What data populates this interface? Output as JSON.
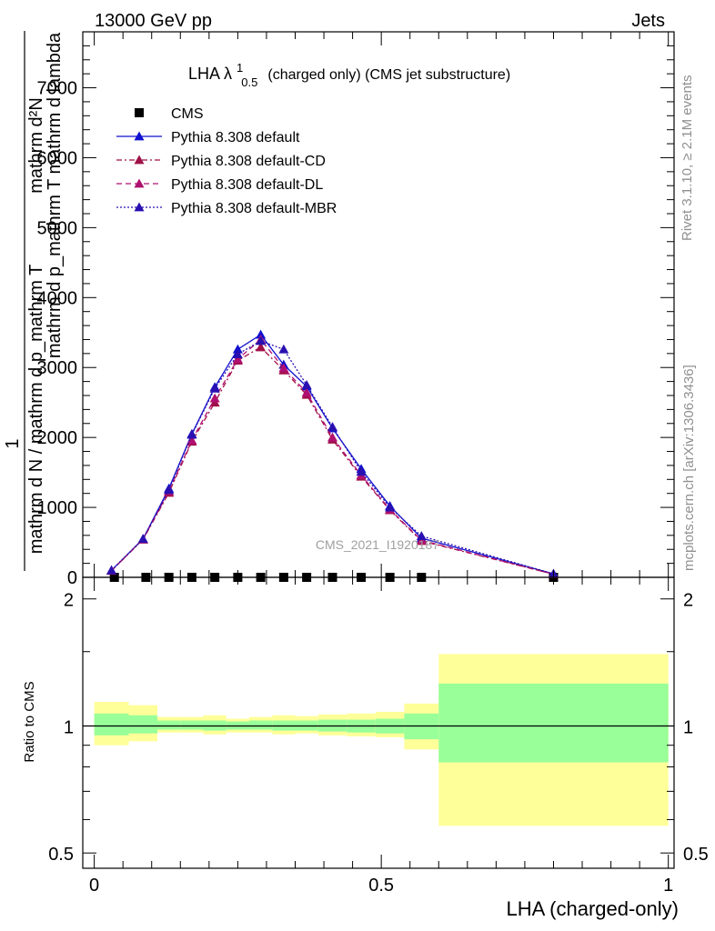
{
  "header": {
    "left": "13000 GeV pp",
    "right": "Jets"
  },
  "side_labels": {
    "rivet": "Rivet 3.1.10, ≥ 2.1M events",
    "mcplots": "mcplots.cern.ch [arXiv:1306.3436]"
  },
  "watermark": "CMS_2021_I1920187",
  "chart_data": [
    {
      "type": "line",
      "title_main": "LHA λ",
      "title_sup": "1",
      "title_sub": "0.5",
      "title_rest": "(charged only) (CMS jet substructure)",
      "ylabel_lines": [
        "mathrm d²N",
        "mathrm d p_mathrm T mathrm d lambda",
        "1",
        "mathrm d N / mathrm d p_mathrm T"
      ],
      "xlim": [
        -0.02,
        1.01
      ],
      "ylim": [
        0,
        7800
      ],
      "yticks": [
        0,
        1000,
        2000,
        3000,
        4000,
        5000,
        6000,
        7000
      ],
      "ytick_labels": [
        "0",
        "1000",
        "2000",
        "3000",
        "4000",
        "5000",
        "6000",
        "7000"
      ],
      "legend_position": "top-left",
      "series": [
        {
          "name": "CMS",
          "color": "#000000",
          "marker": "square",
          "x": [
            0.035,
            0.09,
            0.13,
            0.17,
            0.21,
            0.25,
            0.29,
            0.33,
            0.37,
            0.415,
            0.465,
            0.515,
            0.57,
            0.8
          ],
          "y": [
            0,
            0,
            0,
            0,
            0,
            0,
            0,
            0,
            0,
            0,
            0,
            0,
            0,
            0
          ]
        },
        {
          "name": "Pythia 8.308 default",
          "color": "#1010d0",
          "marker": "triangle",
          "dash": "solid",
          "x": [
            0.03,
            0.085,
            0.13,
            0.17,
            0.21,
            0.25,
            0.29,
            0.33,
            0.37,
            0.415,
            0.465,
            0.515,
            0.57,
            0.8
          ],
          "y": [
            100,
            550,
            1270,
            2050,
            2720,
            3260,
            3470,
            3040,
            2730,
            2130,
            1550,
            1020,
            560,
            50
          ]
        },
        {
          "name": "Pythia 8.308 default-CD",
          "color": "#a01048",
          "marker": "triangle",
          "dash": "dashdot",
          "x": [
            0.03,
            0.085,
            0.13,
            0.17,
            0.21,
            0.25,
            0.29,
            0.33,
            0.37,
            0.415,
            0.465,
            0.515,
            0.57,
            0.8
          ],
          "y": [
            95,
            540,
            1210,
            1940,
            2500,
            3100,
            3290,
            2960,
            2610,
            1970,
            1440,
            960,
            520,
            45
          ]
        },
        {
          "name": "Pythia 8.308 default-DL",
          "color": "#b01070",
          "marker": "triangle",
          "dash": "dashed",
          "x": [
            0.03,
            0.085,
            0.13,
            0.17,
            0.21,
            0.25,
            0.29,
            0.33,
            0.37,
            0.415,
            0.465,
            0.515,
            0.57,
            0.8
          ],
          "y": [
            95,
            545,
            1230,
            1960,
            2560,
            3120,
            3400,
            2990,
            2640,
            2000,
            1460,
            970,
            530,
            45
          ]
        },
        {
          "name": "Pythia 8.308 default-MBR",
          "color": "#2a10b0",
          "marker": "triangle",
          "dash": "dotted",
          "x": [
            0.03,
            0.085,
            0.13,
            0.17,
            0.21,
            0.25,
            0.29,
            0.33,
            0.37,
            0.415,
            0.465,
            0.515,
            0.57,
            0.8
          ],
          "y": [
            100,
            550,
            1250,
            2040,
            2700,
            3190,
            3380,
            3260,
            2750,
            2150,
            1510,
            1000,
            590,
            50
          ]
        }
      ]
    },
    {
      "type": "area",
      "ylabel": "Ratio to CMS",
      "xlabel": "LHA (charged-only)",
      "log_y": true,
      "xlim": [
        -0.02,
        1.01
      ],
      "ylim": [
        0.46,
        2.25
      ],
      "yticks": [
        0.5,
        1,
        2
      ],
      "ytick_labels": [
        "0.5",
        "1",
        "2"
      ],
      "xticks": [
        0,
        0.5,
        1
      ],
      "xtick_labels": [
        "0",
        "0.5",
        "1"
      ],
      "reference_line": 1,
      "bands": {
        "inner_color": "#99ff99",
        "outer_color": "#ffff99",
        "bins": [
          {
            "x0": 0.0,
            "x1": 0.06,
            "inner": [
              0.95,
              1.07
            ],
            "outer": [
              0.9,
              1.14
            ]
          },
          {
            "x0": 0.06,
            "x1": 0.11,
            "inner": [
              0.96,
              1.06
            ],
            "outer": [
              0.92,
              1.12
            ]
          },
          {
            "x0": 0.11,
            "x1": 0.15,
            "inner": [
              0.98,
              1.03
            ],
            "outer": [
              0.965,
              1.05
            ]
          },
          {
            "x0": 0.15,
            "x1": 0.19,
            "inner": [
              0.98,
              1.03
            ],
            "outer": [
              0.965,
              1.05
            ]
          },
          {
            "x0": 0.19,
            "x1": 0.23,
            "inner": [
              0.975,
              1.03
            ],
            "outer": [
              0.955,
              1.06
            ]
          },
          {
            "x0": 0.23,
            "x1": 0.27,
            "inner": [
              0.98,
              1.025
            ],
            "outer": [
              0.965,
              1.04
            ]
          },
          {
            "x0": 0.27,
            "x1": 0.31,
            "inner": [
              0.98,
              1.03
            ],
            "outer": [
              0.965,
              1.05
            ]
          },
          {
            "x0": 0.31,
            "x1": 0.35,
            "inner": [
              0.975,
              1.03
            ],
            "outer": [
              0.955,
              1.06
            ]
          },
          {
            "x0": 0.35,
            "x1": 0.39,
            "inner": [
              0.975,
              1.03
            ],
            "outer": [
              0.96,
              1.055
            ]
          },
          {
            "x0": 0.39,
            "x1": 0.44,
            "inner": [
              0.97,
              1.035
            ],
            "outer": [
              0.95,
              1.065
            ]
          },
          {
            "x0": 0.44,
            "x1": 0.49,
            "inner": [
              0.965,
              1.035
            ],
            "outer": [
              0.945,
              1.07
            ]
          },
          {
            "x0": 0.49,
            "x1": 0.54,
            "inner": [
              0.96,
              1.04
            ],
            "outer": [
              0.94,
              1.08
            ]
          },
          {
            "x0": 0.54,
            "x1": 0.6,
            "inner": [
              0.93,
              1.07
            ],
            "outer": [
              0.88,
              1.13
            ]
          },
          {
            "x0": 0.6,
            "x1": 1.0,
            "inner": [
              0.82,
              1.26
            ],
            "outer": [
              0.58,
              1.48
            ]
          }
        ]
      }
    }
  ]
}
